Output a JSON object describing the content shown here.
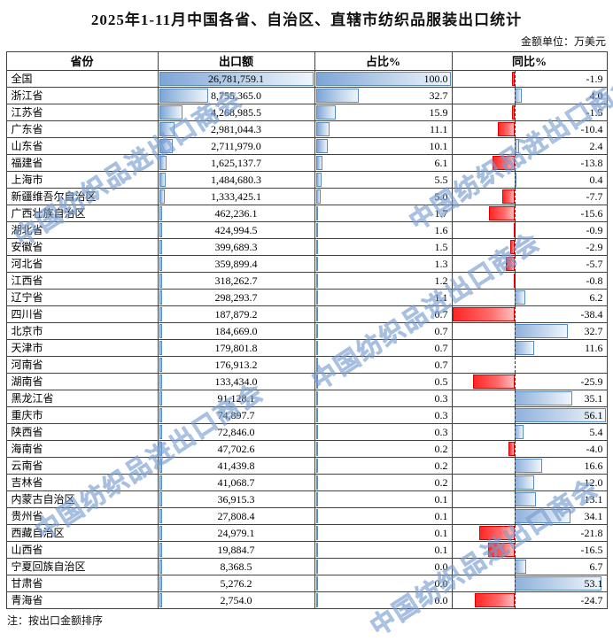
{
  "title": "2025年1-11月中国各省、自治区、直辖市纺织品服装出口统计",
  "unit_note": "金额单位：万美元",
  "footnote": "注：按出口金额排序",
  "watermark_text": "中国纺织品进出口商会",
  "columns": [
    "省份",
    "出口额",
    "占比%",
    "同比%"
  ],
  "colors": {
    "bar_blue": "#7CA5D6",
    "bar_blue_border": "#5B8AC0",
    "bar_red": "#FF2626",
    "bar_red_border": "#D90000",
    "axis_dashed_red": "#B00000",
    "grid_border": "#404040"
  },
  "rows": [
    {
      "province": "全国",
      "export": "26,781,759.1",
      "export_val": 26781759.1,
      "share": "100.0",
      "share_val": 100.0,
      "yoy": "-1.9",
      "yoy_val": -1.9
    },
    {
      "province": "浙江省",
      "export": "8,755,365.0",
      "export_val": 8755365.0,
      "share": "32.7",
      "share_val": 32.7,
      "yoy": "4.0",
      "yoy_val": 4.0
    },
    {
      "province": "江苏省",
      "export": "4,268,985.5",
      "export_val": 4268985.5,
      "share": "15.9",
      "share_val": 15.9,
      "yoy": "-1.5",
      "yoy_val": -1.5
    },
    {
      "province": "广东省",
      "export": "2,981,044.3",
      "export_val": 2981044.3,
      "share": "11.1",
      "share_val": 11.1,
      "yoy": "-10.4",
      "yoy_val": -10.4
    },
    {
      "province": "山东省",
      "export": "2,711,979.0",
      "export_val": 2711979.0,
      "share": "10.1",
      "share_val": 10.1,
      "yoy": "2.4",
      "yoy_val": 2.4
    },
    {
      "province": "福建省",
      "export": "1,625,137.7",
      "export_val": 1625137.7,
      "share": "6.1",
      "share_val": 6.1,
      "yoy": "-13.8",
      "yoy_val": -13.8
    },
    {
      "province": "上海市",
      "export": "1,484,680.3",
      "export_val": 1484680.3,
      "share": "5.5",
      "share_val": 5.5,
      "yoy": "0.4",
      "yoy_val": 0.4
    },
    {
      "province": "新疆维吾尔自治区",
      "export": "1,333,425.1",
      "export_val": 1333425.1,
      "share": "5.0",
      "share_val": 5.0,
      "yoy": "-7.7",
      "yoy_val": -7.7
    },
    {
      "province": "广西壮族自治区",
      "export": "462,236.1",
      "export_val": 462236.1,
      "share": "1.7",
      "share_val": 1.7,
      "yoy": "-15.6",
      "yoy_val": -15.6
    },
    {
      "province": "湖北省",
      "export": "424,994.5",
      "export_val": 424994.5,
      "share": "1.6",
      "share_val": 1.6,
      "yoy": "-0.9",
      "yoy_val": -0.9
    },
    {
      "province": "安徽省",
      "export": "399,689.3",
      "export_val": 399689.3,
      "share": "1.5",
      "share_val": 1.5,
      "yoy": "-2.9",
      "yoy_val": -2.9
    },
    {
      "province": "河北省",
      "export": "359,899.4",
      "export_val": 359899.4,
      "share": "1.3",
      "share_val": 1.3,
      "yoy": "-5.7",
      "yoy_val": -5.7
    },
    {
      "province": "江西省",
      "export": "318,262.7",
      "export_val": 318262.7,
      "share": "1.2",
      "share_val": 1.2,
      "yoy": "-0.8",
      "yoy_val": -0.8
    },
    {
      "province": "辽宁省",
      "export": "298,293.7",
      "export_val": 298293.7,
      "share": "1.1",
      "share_val": 1.1,
      "yoy": "6.2",
      "yoy_val": 6.2
    },
    {
      "province": "四川省",
      "export": "187,879.2",
      "export_val": 187879.2,
      "share": "0.7",
      "share_val": 0.7,
      "yoy": "-38.4",
      "yoy_val": -38.4
    },
    {
      "province": "北京市",
      "export": "184,669.0",
      "export_val": 184669.0,
      "share": "0.7",
      "share_val": 0.7,
      "yoy": "32.7",
      "yoy_val": 32.7
    },
    {
      "province": "天津市",
      "export": "179,801.8",
      "export_val": 179801.8,
      "share": "0.7",
      "share_val": 0.7,
      "yoy": "11.6",
      "yoy_val": 11.6
    },
    {
      "province": "河南省",
      "export": "176,913.2",
      "export_val": 176913.2,
      "share": "0.7",
      "share_val": 0.7,
      "yoy": "",
      "yoy_val": null
    },
    {
      "province": "湖南省",
      "export": "133,434.0",
      "export_val": 133434.0,
      "share": "0.5",
      "share_val": 0.5,
      "yoy": "-25.9",
      "yoy_val": -25.9
    },
    {
      "province": "黑龙江省",
      "export": "91,128.1",
      "export_val": 91128.1,
      "share": "0.3",
      "share_val": 0.3,
      "yoy": "35.1",
      "yoy_val": 35.1
    },
    {
      "province": "重庆市",
      "export": "74,897.7",
      "export_val": 74897.7,
      "share": "0.3",
      "share_val": 0.3,
      "yoy": "56.1",
      "yoy_val": 56.1
    },
    {
      "province": "陕西省",
      "export": "72,846.0",
      "export_val": 72846.0,
      "share": "0.3",
      "share_val": 0.3,
      "yoy": "5.4",
      "yoy_val": 5.4
    },
    {
      "province": "海南省",
      "export": "47,702.6",
      "export_val": 47702.6,
      "share": "0.2",
      "share_val": 0.2,
      "yoy": "-4.0",
      "yoy_val": -4.0
    },
    {
      "province": "云南省",
      "export": "41,439.8",
      "export_val": 41439.8,
      "share": "0.2",
      "share_val": 0.2,
      "yoy": "16.6",
      "yoy_val": 16.6
    },
    {
      "province": "吉林省",
      "export": "41,068.7",
      "export_val": 41068.7,
      "share": "0.2",
      "share_val": 0.2,
      "yoy": "12.0",
      "yoy_val": 12.0
    },
    {
      "province": "内蒙古自治区",
      "export": "36,915.3",
      "export_val": 36915.3,
      "share": "0.1",
      "share_val": 0.1,
      "yoy": "13.1",
      "yoy_val": 13.1
    },
    {
      "province": "贵州省",
      "export": "27,808.4",
      "export_val": 27808.4,
      "share": "0.1",
      "share_val": 0.1,
      "yoy": "34.1",
      "yoy_val": 34.1
    },
    {
      "province": "西藏自治区",
      "export": "24,979.1",
      "export_val": 24979.1,
      "share": "0.1",
      "share_val": 0.1,
      "yoy": "-21.8",
      "yoy_val": -21.8
    },
    {
      "province": "山西省",
      "export": "19,884.7",
      "export_val": 19884.7,
      "share": "0.1",
      "share_val": 0.1,
      "yoy": "-16.5",
      "yoy_val": -16.5
    },
    {
      "province": "宁夏回族自治区",
      "export": "8,368.5",
      "export_val": 8368.5,
      "share": "0.0",
      "share_val": 0.0,
      "yoy": "6.7",
      "yoy_val": 6.7
    },
    {
      "province": "甘肃省",
      "export": "5,276.2",
      "export_val": 5276.2,
      "share": "0.0",
      "share_val": 0.0,
      "yoy": "53.1",
      "yoy_val": 53.1
    },
    {
      "province": "青海省",
      "export": "2,754.0",
      "export_val": 2754.0,
      "share": "0.0",
      "share_val": 0.0,
      "yoy": "-24.7",
      "yoy_val": -24.7
    }
  ]
}
